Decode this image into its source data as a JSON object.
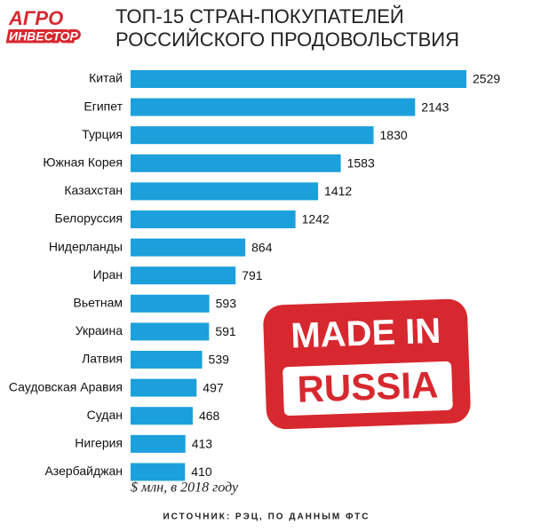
{
  "logo": [
    "АГРО",
    "ИНВЕСТОР"
  ],
  "chart_data": {
    "type": "bar",
    "orientation": "horizontal",
    "title": [
      "ТОП-15 СТРАН-ПОКУПАТЕЛЕЙ",
      "РОССИЙСКОГО ПРОДОВОЛЬСТВИЯ"
    ],
    "categories": [
      "Китай",
      "Египет",
      "Турция",
      "Южная Корея",
      "Казахстан",
      "Белоруссия",
      "Нидерланды",
      "Иран",
      "Вьетнам",
      "Украина",
      "Латвия",
      "Саудовская Аравия",
      "Судан",
      "Нигерия",
      "Азербайджан"
    ],
    "values": [
      2529,
      2143,
      1830,
      1583,
      1412,
      1242,
      864,
      791,
      593,
      591,
      539,
      497,
      468,
      413,
      410
    ],
    "color": "#1ba0db",
    "unit_note": "$ млн, в 2018 году",
    "source": "ИСТОЧНИК: РЭЦ, ПО ДАННЫМ ФТС",
    "stamp": [
      "MADE IN",
      "RUSSIA"
    ]
  }
}
